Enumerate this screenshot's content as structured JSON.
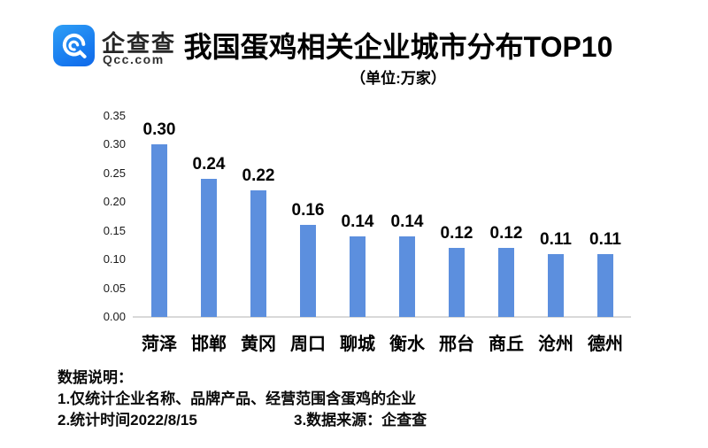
{
  "header": {
    "logo": {
      "name": "企查查",
      "domain": "Qcc.com",
      "brand_color": "#1B7FF2"
    },
    "title": "我国蛋鸡相关企业城市分布TOP10",
    "subtitle": "（单位:万家）"
  },
  "chart_data": {
    "type": "bar",
    "title": "我国蛋鸡相关企业城市分布TOP10",
    "subtitle_unit": "（单位:万家）",
    "categories": [
      "菏泽",
      "邯郸",
      "黄冈",
      "周口",
      "聊城",
      "衡水",
      "邢台",
      "商丘",
      "沧州",
      "德州"
    ],
    "values": [
      0.3,
      0.24,
      0.22,
      0.16,
      0.14,
      0.14,
      0.12,
      0.12,
      0.11,
      0.11
    ],
    "value_labels": [
      "0.30",
      "0.24",
      "0.22",
      "0.16",
      "0.14",
      "0.14",
      "0.12",
      "0.12",
      "0.11",
      "0.11"
    ],
    "xlabel": "",
    "ylabel": "",
    "ylim": [
      0,
      0.35
    ],
    "ytick_labels": [
      "0.00",
      "0.05",
      "0.10",
      "0.15",
      "0.20",
      "0.25",
      "0.30",
      "0.35"
    ],
    "grid": false,
    "legend": "none",
    "bar_color": "#5C8FDE",
    "axis_line_color": "#d9d9d9"
  },
  "footer": {
    "heading": "数据说明：",
    "note1": "1.仅统计企业名称、品牌产品、经营范围含蛋鸡的企业",
    "note2": "2.统计时间2022/8/15",
    "note3": "3.数据来源：企查查"
  }
}
